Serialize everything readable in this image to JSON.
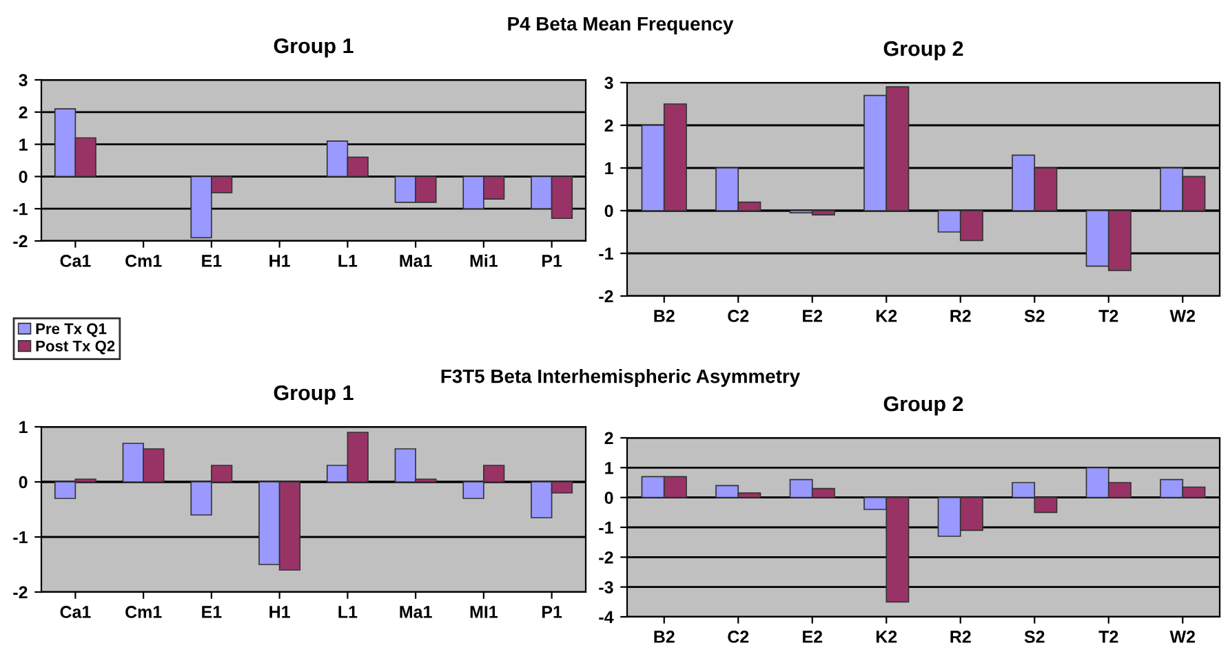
{
  "chart_data": [
    {
      "type": "bar",
      "title": "Group 1",
      "annotations": [
        "P4 Beta Mean Frequency"
      ],
      "categories": [
        "Ca1",
        "Cm1",
        "E1",
        "H1",
        "L1",
        "Ma1",
        "Mi1",
        "P1"
      ],
      "series": [
        {
          "color": "#9999ff",
          "values": [
            2.1,
            null,
            -1.9,
            null,
            1.1,
            -0.8,
            -1.0,
            -1.0
          ]
        },
        {
          "color": "#993366",
          "values": [
            1.2,
            null,
            -0.5,
            null,
            0.6,
            -0.8,
            -0.7,
            -1.3
          ]
        }
      ],
      "ylim": [
        -2,
        3
      ],
      "yticks": [
        -2,
        -1,
        0,
        1,
        2,
        3
      ],
      "grid": "y",
      "legend": false
    },
    {
      "type": "bar",
      "title": "Group 2",
      "categories": [
        "B2",
        "C2",
        "E2",
        "K2",
        "R2",
        "S2",
        "T2",
        "W2"
      ],
      "series": [
        {
          "color": "#9999ff",
          "values": [
            2.0,
            1.0,
            -0.05,
            2.7,
            -0.5,
            1.3,
            -1.3,
            1.0
          ]
        },
        {
          "color": "#993366",
          "values": [
            2.5,
            0.2,
            -0.1,
            2.9,
            -0.7,
            1.0,
            -1.4,
            0.8
          ]
        }
      ],
      "ylim": [
        -2,
        3
      ],
      "yticks": [
        -2,
        -1,
        0,
        1,
        2,
        3
      ],
      "grid": "y",
      "legend": false
    },
    {
      "type": "bar",
      "title": "Group 1",
      "annotations": [
        "F3T5 Beta Interhemispheric Asymmetry"
      ],
      "categories": [
        "Ca1",
        "Cm1",
        "E1",
        "H1",
        "L1",
        "Ma1",
        "MI1",
        "P1"
      ],
      "series": [
        {
          "name": "Pre Tx Q1",
          "color": "#9999ff",
          "values": [
            -0.3,
            0.7,
            -0.6,
            -1.5,
            0.3,
            0.6,
            -0.3,
            -0.65
          ]
        },
        {
          "name": "Post Tx Q2",
          "color": "#993366",
          "values": [
            0.05,
            0.6,
            0.3,
            -1.6,
            0.9,
            0.05,
            0.3,
            -0.2
          ]
        }
      ],
      "ylim": [
        -2,
        1
      ],
      "yticks": [
        -2,
        -1,
        0,
        1
      ],
      "grid": "y",
      "legend": "top left"
    },
    {
      "type": "bar",
      "title": "Group 2",
      "categories": [
        "B2",
        "C2",
        "E2",
        "K2",
        "R2",
        "S2",
        "T2",
        "W2"
      ],
      "series": [
        {
          "color": "#9999ff",
          "values": [
            0.7,
            0.4,
            0.6,
            -0.4,
            -1.3,
            0.5,
            1.0,
            0.6
          ]
        },
        {
          "color": "#993366",
          "values": [
            0.7,
            0.15,
            0.3,
            -3.5,
            -1.1,
            -0.5,
            0.5,
            0.35
          ]
        }
      ],
      "ylim": [
        -4,
        2
      ],
      "yticks": [
        -4,
        -3,
        -2,
        -1,
        0,
        1,
        2
      ],
      "grid": "y",
      "legend": false
    }
  ]
}
